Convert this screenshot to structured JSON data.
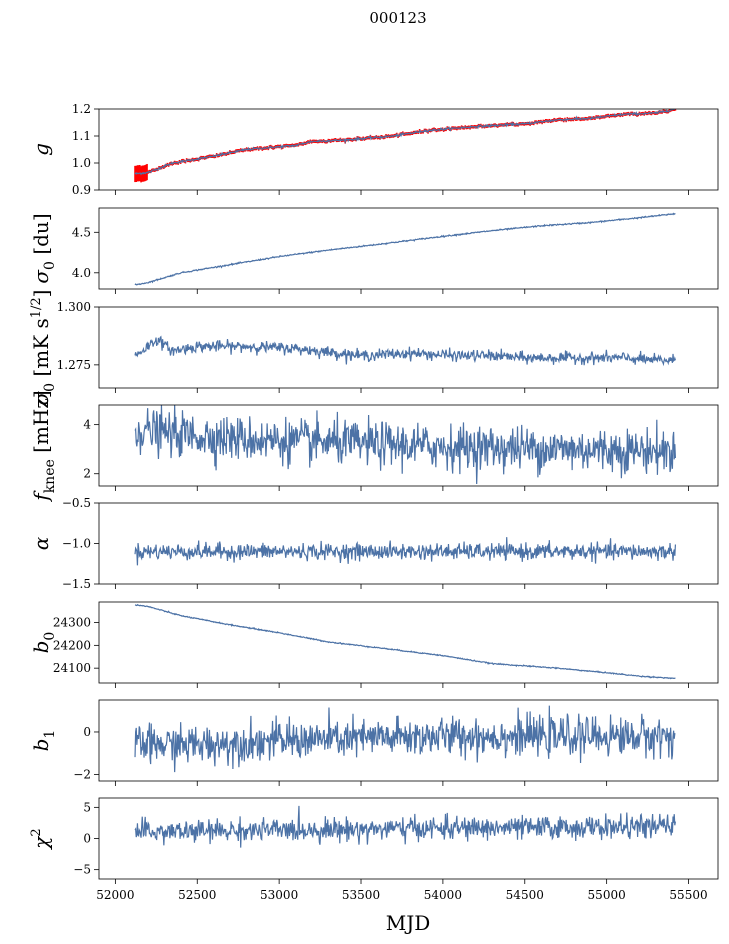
{
  "figure": {
    "title": "000123",
    "xlabel": "MJD",
    "xlim": [
      51900,
      55680
    ],
    "xticks": [
      52000,
      52500,
      53000,
      53500,
      54000,
      54500,
      55000,
      55500
    ],
    "line_color": "#4c72a6",
    "errorbar_color": "#ff0000"
  },
  "chart_data": [
    {
      "type": "line",
      "name": "gain",
      "ylabel_sym": "g",
      "ylabel_sub": "",
      "ylabel_unit": "",
      "ylim": [
        0.9,
        1.2
      ],
      "yticks": [
        0.9,
        1.0,
        1.1,
        1.2
      ],
      "ytick_labels": [
        "0.9",
        "1.0",
        "1.1",
        "1.2"
      ],
      "x_start": 52120,
      "x_end": 55420,
      "trend": [
        [
          52120,
          0.96
        ],
        [
          52200,
          0.965
        ],
        [
          52350,
          1.0
        ],
        [
          52600,
          1.025
        ],
        [
          52800,
          1.05
        ],
        [
          53100,
          1.065
        ],
        [
          53200,
          1.08
        ],
        [
          53400,
          1.085
        ],
        [
          53700,
          1.1
        ],
        [
          53900,
          1.12
        ],
        [
          54200,
          1.135
        ],
        [
          54500,
          1.145
        ],
        [
          54700,
          1.16
        ],
        [
          54900,
          1.165
        ],
        [
          55100,
          1.18
        ],
        [
          55300,
          1.185
        ],
        [
          55420,
          1.2
        ]
      ],
      "noise": 0.002,
      "error_bars": true
    },
    {
      "type": "line",
      "name": "sigma0",
      "ylabel_sym": "σ",
      "ylabel_sub": "0",
      "ylabel_unit": "[du]",
      "ylim": [
        3.8,
        4.8
      ],
      "yticks": [
        4.0,
        4.5
      ],
      "ytick_labels": [
        "4.0",
        "4.5"
      ],
      "x_start": 52120,
      "x_end": 55420,
      "trend": [
        [
          52120,
          3.85
        ],
        [
          52200,
          3.88
        ],
        [
          52400,
          4.0
        ],
        [
          52700,
          4.1
        ],
        [
          53000,
          4.2
        ],
        [
          53300,
          4.28
        ],
        [
          53600,
          4.35
        ],
        [
          54000,
          4.45
        ],
        [
          54300,
          4.52
        ],
        [
          54600,
          4.58
        ],
        [
          54900,
          4.62
        ],
        [
          55200,
          4.68
        ],
        [
          55420,
          4.73
        ]
      ],
      "noise": 0.004,
      "error_bars": false
    },
    {
      "type": "line",
      "name": "sigma0_mK",
      "ylabel_sym": "σ",
      "ylabel_sub": "0",
      "ylabel_unit": "[mK s",
      "ylabel_sup": "1/2",
      "ylabel_close": "]",
      "ylim": [
        1.265,
        1.3
      ],
      "yticks": [
        1.275,
        1.3
      ],
      "ytick_labels": [
        "1.275",
        "1.300"
      ],
      "x_start": 52120,
      "x_end": 55420,
      "trend": [
        [
          52120,
          1.279
        ],
        [
          52200,
          1.283
        ],
        [
          52250,
          1.286
        ],
        [
          52350,
          1.281
        ],
        [
          52500,
          1.283
        ],
        [
          52800,
          1.283
        ],
        [
          53100,
          1.282
        ],
        [
          53500,
          1.279
        ],
        [
          53800,
          1.28
        ],
        [
          54100,
          1.279
        ],
        [
          54300,
          1.279
        ],
        [
          54500,
          1.278
        ],
        [
          54800,
          1.278
        ],
        [
          55100,
          1.278
        ],
        [
          55300,
          1.277
        ],
        [
          55420,
          1.277
        ]
      ],
      "noise": 0.0012,
      "error_bars": false
    },
    {
      "type": "line",
      "name": "fknee",
      "ylabel_sym": "f",
      "ylabel_sub": "knee",
      "ylabel_unit": "[mHz]",
      "ylim": [
        1.5,
        4.8
      ],
      "yticks": [
        2,
        4
      ],
      "ytick_labels": [
        "2",
        "4"
      ],
      "x_start": 52120,
      "x_end": 55420,
      "trend": [
        [
          52120,
          3.8
        ],
        [
          52400,
          3.6
        ],
        [
          52800,
          3.4
        ],
        [
          53200,
          3.3
        ],
        [
          53600,
          3.2
        ],
        [
          54000,
          3.1
        ],
        [
          54400,
          3.05
        ],
        [
          54800,
          3.0
        ],
        [
          55200,
          2.95
        ],
        [
          55420,
          2.9
        ]
      ],
      "noise": 0.45,
      "error_bars": false
    },
    {
      "type": "line",
      "name": "alpha",
      "ylabel_sym": "α",
      "ylabel_sub": "",
      "ylabel_unit": "",
      "ylim": [
        -1.5,
        -0.5
      ],
      "yticks": [
        -1.5,
        -1.0,
        -0.5
      ],
      "ytick_labels": [
        "−1.5",
        "−1.0",
        "−0.5"
      ],
      "x_start": 52120,
      "x_end": 55420,
      "trend": [
        [
          52120,
          -1.1
        ],
        [
          55420,
          -1.1
        ]
      ],
      "noise": 0.05,
      "error_bars": false
    },
    {
      "type": "line",
      "name": "b0",
      "ylabel_sym": "b",
      "ylabel_sub": "0",
      "ylabel_unit": "",
      "ylim": [
        24035,
        24390
      ],
      "yticks": [
        24100,
        24200,
        24300
      ],
      "ytick_labels": [
        "24100",
        "24200",
        "24300"
      ],
      "x_start": 52120,
      "x_end": 55420,
      "trend": [
        [
          52120,
          24378
        ],
        [
          52200,
          24370
        ],
        [
          52400,
          24330
        ],
        [
          52700,
          24290
        ],
        [
          53000,
          24255
        ],
        [
          53300,
          24215
        ],
        [
          53600,
          24190
        ],
        [
          54000,
          24155
        ],
        [
          54300,
          24120
        ],
        [
          54700,
          24100
        ],
        [
          55000,
          24080
        ],
        [
          55200,
          24065
        ],
        [
          55420,
          24055
        ]
      ],
      "noise": 1.2,
      "error_bars": false
    },
    {
      "type": "line",
      "name": "b1",
      "ylabel_sym": "b",
      "ylabel_sub": "1",
      "ylabel_unit": "",
      "ylim": [
        -2.3,
        1.5
      ],
      "yticks": [
        -2,
        0
      ],
      "ytick_labels": [
        "−2",
        "0"
      ],
      "x_start": 52120,
      "x_end": 55420,
      "trend": [
        [
          52120,
          -0.6
        ],
        [
          52500,
          -0.6
        ],
        [
          53000,
          -0.4
        ],
        [
          53500,
          -0.3
        ],
        [
          54000,
          -0.2
        ],
        [
          54500,
          -0.2
        ],
        [
          55000,
          -0.2
        ],
        [
          55420,
          -0.2
        ]
      ],
      "noise": 0.45,
      "error_bars": false
    },
    {
      "type": "line",
      "name": "chi2",
      "ylabel_sym": "χ",
      "ylabel_sup2": "2",
      "ylabel_sub": "",
      "ylabel_unit": "",
      "ylim": [
        -6.5,
        6.5
      ],
      "yticks": [
        -5,
        0,
        5
      ],
      "ytick_labels": [
        "−5",
        "0",
        "5"
      ],
      "x_start": 52120,
      "x_end": 55420,
      "trend": [
        [
          52120,
          1.0
        ],
        [
          52600,
          1.2
        ],
        [
          53200,
          1.4
        ],
        [
          53800,
          1.6
        ],
        [
          54400,
          1.7
        ],
        [
          55000,
          1.8
        ],
        [
          55420,
          2.0
        ]
      ],
      "noise": 0.9,
      "error_bars": false
    }
  ]
}
